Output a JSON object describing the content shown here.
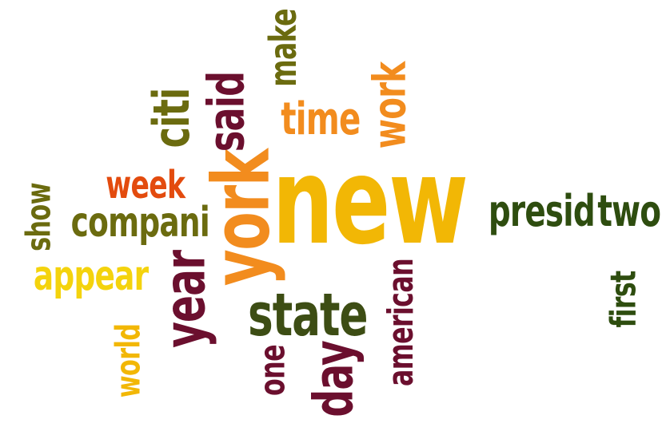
{
  "palette": {
    "orange": "#f28c1e",
    "gold": "#f2b705",
    "yellow": "#f4d30d",
    "red_orange": "#e34b0e",
    "olive": "#6b6b0f",
    "dark_olive": "#3d4d14",
    "maroon": "#6b0f2e",
    "dark_green": "#2e4d0f"
  },
  "words": [
    {
      "key": "new",
      "text": "new",
      "color": "#f2b705",
      "weight": 10
    },
    {
      "key": "york",
      "text": "york",
      "color": "#f28c1e",
      "weight": 8
    },
    {
      "key": "time",
      "text": "time",
      "color": "#f28c1e",
      "weight": 6
    },
    {
      "key": "work",
      "text": "work",
      "color": "#f28c1e",
      "weight": 5
    },
    {
      "key": "said",
      "text": "said",
      "color": "#6b0f2e",
      "weight": 6
    },
    {
      "key": "make",
      "text": "make",
      "color": "#6b6b0f",
      "weight": 5
    },
    {
      "key": "citi",
      "text": "citi",
      "color": "#6b6b0f",
      "weight": 5
    },
    {
      "key": "week",
      "text": "week",
      "color": "#e34b0e",
      "weight": 5
    },
    {
      "key": "compani",
      "text": "compani",
      "color": "#6b6b0f",
      "weight": 5
    },
    {
      "key": "show",
      "text": "show",
      "color": "#6b6b0f",
      "weight": 4
    },
    {
      "key": "appear",
      "text": "appear",
      "color": "#f4d30d",
      "weight": 5
    },
    {
      "key": "year",
      "text": "year",
      "color": "#6b0f2e",
      "weight": 6
    },
    {
      "key": "world",
      "text": "world",
      "color": "#f2b705",
      "weight": 4
    },
    {
      "key": "state",
      "text": "state",
      "color": "#3d4d14",
      "weight": 7
    },
    {
      "key": "one",
      "text": "one",
      "color": "#6b0f2e",
      "weight": 4
    },
    {
      "key": "day",
      "text": "day",
      "color": "#6b0f2e",
      "weight": 6
    },
    {
      "key": "american",
      "text": "american",
      "color": "#6b0f2e",
      "weight": 4
    },
    {
      "key": "presid",
      "text": "presid",
      "color": "#2e4d0f",
      "weight": 5
    },
    {
      "key": "two",
      "text": "two",
      "color": "#2e4d0f",
      "weight": 5
    },
    {
      "key": "first",
      "text": "first",
      "color": "#2e4d0f",
      "weight": 4
    }
  ]
}
